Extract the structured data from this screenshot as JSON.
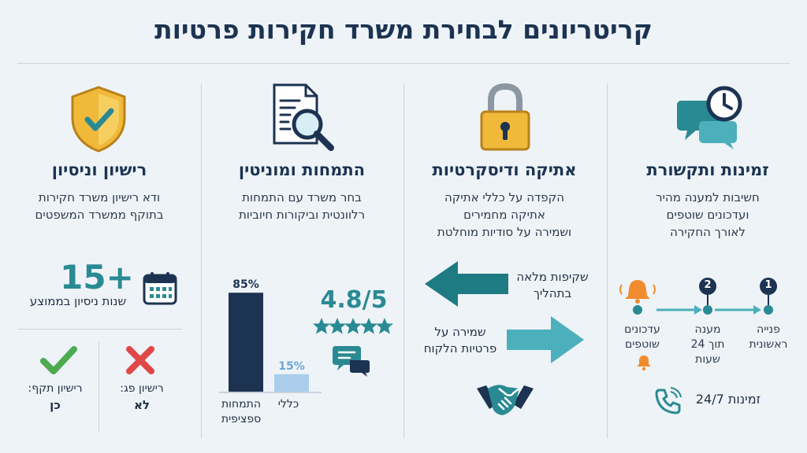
{
  "title": "קריטריונים לבחירת משרד חקירות פרטיות",
  "columns": {
    "license": {
      "icon": "shield-check-icon",
      "heading": "רישיון וניסיון",
      "desc_lines": [
        "ודא רישיון משרד חקירות",
        "בתוקף ממשרד המשפטים"
      ],
      "years_value": "15+",
      "years_label": "שנות ניסיון בממוצע",
      "calendar_icon": "calendar-icon",
      "valid_label": "רישיון תקף:",
      "valid_value": "כן",
      "expired_label": "רישיון פג:",
      "expired_value": "לא"
    },
    "expertise": {
      "icon": "document-search-icon",
      "heading": "התמחות ומוניטין",
      "desc_lines": [
        "בחר משרד עם התמחות",
        "רלוונטית וביקורות חיוביות"
      ],
      "rating": "4.8/5",
      "rating_stars": 4.8,
      "chat_icon": "chat-bubbles-icon"
    },
    "ethics": {
      "icon": "padlock-icon",
      "heading": "אתיקה ודיסקרטיות",
      "desc_lines": [
        "הקפדה על כללי אתיקה",
        "אתיקה מחמירים",
        "ושמירה על סודיות מוחלטת"
      ],
      "arrow_left_lines": [
        "שקיפות מלאה",
        "בתהליך"
      ],
      "arrow_right_lines": [
        "שמירה על",
        "פרטיות הלקוח"
      ],
      "handshake_icon": "handshake-icon"
    },
    "availability": {
      "icon": "chat-clock-icon",
      "heading": "זמינות ותקשורת",
      "desc_lines": [
        "חשיבות למענה מהיר",
        "ועדכונים שוטפים",
        "לאורך החקירה"
      ],
      "steps": [
        {
          "num": "1",
          "lines": [
            "פנייה",
            "ראשונית"
          ]
        },
        {
          "num": "2",
          "lines": [
            "מענה",
            "תוך 24",
            "שעות"
          ]
        },
        {
          "num": "",
          "lines": [
            "עדכונים",
            "שוטפים"
          ]
        }
      ],
      "availability_label": "זמינות 24/7",
      "phone_icon": "phone-icon",
      "bell_icon": "bell-icon"
    }
  },
  "chart_data": {
    "type": "bar",
    "categories": [
      "התמחות ספציפית",
      "כללי"
    ],
    "values": [
      85,
      15
    ],
    "value_labels": [
      "85%",
      "15%"
    ],
    "ylim": [
      0,
      100
    ],
    "colors": [
      "#1c3352",
      "#a9cdea"
    ]
  },
  "colors": {
    "navy": "#1c3352",
    "teal": "#2a8a93",
    "gold": "#f0b93a",
    "green": "#4caa4f",
    "red": "#e04848"
  }
}
